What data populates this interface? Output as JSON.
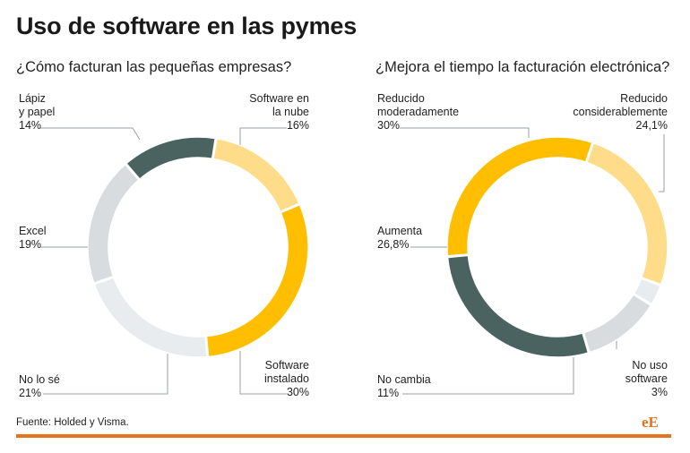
{
  "header": {
    "title": "Uso de software en las pymes"
  },
  "footer": {
    "source": "Fuente: Holded y Visma.",
    "logo_text": "eE"
  },
  "colors": {
    "dark_teal": "#4a6361",
    "light_yellow": "#fedc8a",
    "yellow": "#ffbf00",
    "pale_gray": "#e9ecee",
    "light_gray": "#d8dcdf",
    "accent": "#e8731e"
  },
  "chart_data": [
    {
      "type": "pie",
      "title": "¿Cómo facturan las pequeñas empresas?",
      "slices": [
        {
          "label": "Lápiz y papel",
          "lines": [
            "Lápiz",
            "y papel"
          ],
          "value": 14,
          "value_label": "14%",
          "color": "#4a6361"
        },
        {
          "label": "Software en la nube",
          "lines": [
            "Software en",
            "la nube"
          ],
          "value": 16,
          "value_label": "16%",
          "color": "#fedc8a"
        },
        {
          "label": "Software instalado",
          "lines": [
            "Software",
            "instalado"
          ],
          "value": 30,
          "value_label": "30%",
          "color": "#ffbf00"
        },
        {
          "label": "No lo sé",
          "lines": [
            "No lo sé"
          ],
          "value": 21,
          "value_label": "21%",
          "color": "#e9ecee"
        },
        {
          "label": "Excel",
          "lines": [
            "Excel"
          ],
          "value": 19,
          "value_label": "19%",
          "color": "#d8dcdf"
        }
      ]
    },
    {
      "type": "pie",
      "title": "¿Mejora el tiempo la facturación electrónica?",
      "slices": [
        {
          "label": "Reducido moderadamente",
          "lines": [
            "Reducido",
            "moderadamente"
          ],
          "value": 30,
          "value_label": "30%",
          "color": "#ffbf00"
        },
        {
          "label": "Reducido considerablemente",
          "lines": [
            "Reducido",
            "considerablemente"
          ],
          "value": 24.1,
          "value_label": "24,1%",
          "color": "#fedc8a"
        },
        {
          "label": "No uso software",
          "lines": [
            "No uso",
            "software"
          ],
          "value": 3,
          "value_label": "3%",
          "color": "#e9ecee"
        },
        {
          "label": "No cambia",
          "lines": [
            "No cambia"
          ],
          "value": 11,
          "value_label": "11%",
          "color": "#d8dcdf"
        },
        {
          "label": "Aumenta",
          "lines": [
            "Aumenta"
          ],
          "value": 26.8,
          "value_label": "26,8%",
          "color": "#4a6361"
        }
      ]
    }
  ]
}
